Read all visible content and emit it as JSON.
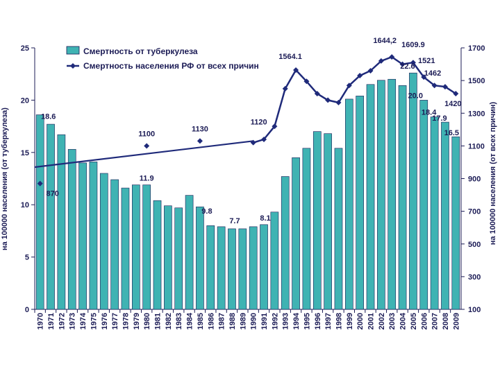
{
  "chart_data": {
    "type": "bar",
    "categories": [
      "1970",
      "1971",
      "1972",
      "1973",
      "1974",
      "1975",
      "1976",
      "1977",
      "1978",
      "1979",
      "1980",
      "1981",
      "1982",
      "1983",
      "1984",
      "1985",
      "1986",
      "1987",
      "1988",
      "1989",
      "1990",
      "1991",
      "1992",
      "1993",
      "1994",
      "1995",
      "1996",
      "1997",
      "1998",
      "1999",
      "2000",
      "2001",
      "2002",
      "2003",
      "2004",
      "2005",
      "2006",
      "2007",
      "2008",
      "2009"
    ],
    "series": [
      {
        "name": "Смертность от туберкулеза",
        "kind": "bar",
        "axis": "left",
        "color": "#3fb3b3",
        "values": [
          18.6,
          17.7,
          16.7,
          15.3,
          14.0,
          14.1,
          13.0,
          12.4,
          11.6,
          11.9,
          11.9,
          10.4,
          9.9,
          9.7,
          10.9,
          9.8,
          8.0,
          7.9,
          7.7,
          7.7,
          7.9,
          8.1,
          9.3,
          12.7,
          14.5,
          15.4,
          17.0,
          16.8,
          15.4,
          20.1,
          20.4,
          21.5,
          21.9,
          22.0,
          21.4,
          22.6,
          20.0,
          18.4,
          17.9,
          16.5
        ]
      },
      {
        "name": "Смертность населения РФ от всех причин",
        "kind": "line",
        "axis": "right",
        "color": "#1f2a7a",
        "values": [
          870,
          null,
          null,
          null,
          null,
          null,
          null,
          null,
          null,
          null,
          1100,
          null,
          null,
          null,
          null,
          1130,
          null,
          null,
          null,
          null,
          1120,
          1140,
          1220,
          1450,
          1564.1,
          1495,
          1420,
          1380,
          1365,
          1470,
          1530,
          1560,
          1620,
          1644.2,
          1600,
          1609.9,
          1521,
          1470,
          1462,
          1420
        ]
      }
    ],
    "bar_labels": [
      {
        "index": 0,
        "text": "18.6"
      },
      {
        "index": 10,
        "text": "11.9"
      },
      {
        "index": 15,
        "text": "9.8"
      },
      {
        "index": 18,
        "text": "7.7"
      },
      {
        "index": 21,
        "text": "8.1"
      },
      {
        "index": 35,
        "text": "22.6"
      },
      {
        "index": 36,
        "text": "20.0"
      },
      {
        "index": 37,
        "text": "18.4"
      },
      {
        "index": 38,
        "text": "17.9"
      },
      {
        "index": 39,
        "text": "16.5"
      }
    ],
    "line_labels": [
      {
        "index": 0,
        "text": "870"
      },
      {
        "index": 10,
        "text": "1100"
      },
      {
        "index": 15,
        "text": "1130"
      },
      {
        "index": 20,
        "text": "1120"
      },
      {
        "index": 24,
        "text": "1564.1"
      },
      {
        "index": 33,
        "text": "1644,2"
      },
      {
        "index": 35,
        "text": "1609.9"
      },
      {
        "index": 36,
        "text": "1521"
      },
      {
        "index": 38,
        "text": "1462"
      },
      {
        "index": 39,
        "text": "1420"
      }
    ],
    "trend_line": {
      "from_index": 0,
      "to_index": 20,
      "from_value": 970,
      "to_value": 1130
    },
    "left_axis": {
      "label": "на 100000 населения (от туберкулеза)",
      "ylim": [
        0,
        25
      ],
      "ticks": [
        0,
        5,
        10,
        15,
        20,
        25
      ]
    },
    "right_axis": {
      "label": "на 100000 населения (от всех причин)",
      "ylim": [
        100,
        1700
      ],
      "ticks": [
        100,
        300,
        500,
        700,
        900,
        1100,
        1300,
        1500,
        1700
      ]
    },
    "legend_position": "top-left"
  }
}
